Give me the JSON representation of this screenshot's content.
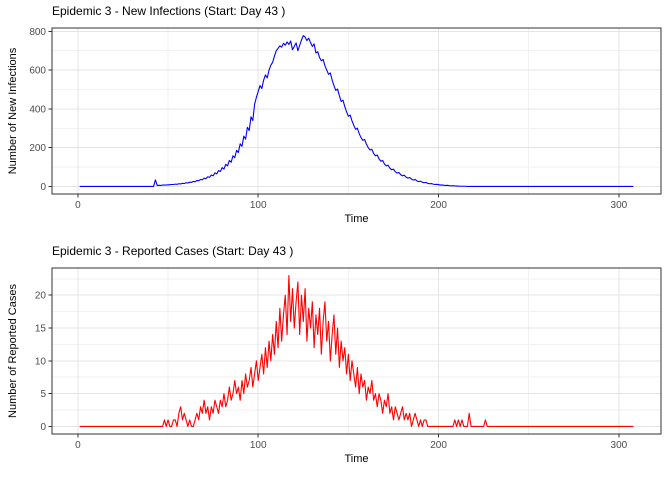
{
  "theme": {
    "background": "#FFFFFF",
    "grid_major_color": "#E4E4E4",
    "grid_minor_color": "#F2F2F2",
    "panel_border_color": "#333333",
    "tick_mark_color": "#333333",
    "tick_label_color": "#4D4D4D",
    "title_color": "#000000"
  },
  "chart_data": [
    {
      "type": "line",
      "title": "Epidemic 3 - New Infections (Start: Day 43 )",
      "xlabel": "Time",
      "ylabel": "Number of New Infections",
      "line_color": "#0000FF",
      "legend": "none",
      "grid": true,
      "x_ticks": [
        0,
        100,
        200,
        300
      ],
      "y_ticks": [
        0,
        200,
        400,
        600,
        800
      ],
      "x_minor_ticks": [
        50,
        150,
        250
      ],
      "y_minor_ticks": [
        100,
        300,
        500,
        700
      ],
      "ylim_hint": [
        0,
        800
      ],
      "x_start": 1,
      "x_step": 1,
      "values": [
        0,
        0,
        0,
        0,
        0,
        0,
        0,
        0,
        0,
        0,
        0,
        0,
        0,
        0,
        0,
        0,
        0,
        0,
        0,
        0,
        0,
        0,
        0,
        0,
        0,
        0,
        0,
        0,
        0,
        0,
        0,
        0,
        0,
        0,
        0,
        0,
        0,
        0,
        0,
        0,
        0,
        0,
        34,
        5,
        6,
        5,
        7,
        7,
        8,
        8,
        9,
        10,
        10,
        12,
        11,
        14,
        13,
        16,
        15,
        19,
        18,
        22,
        21,
        26,
        24,
        31,
        29,
        36,
        34,
        43,
        40,
        50,
        47,
        59,
        55,
        70,
        65,
        82,
        77,
        97,
        90,
        114,
        106,
        134,
        125,
        158,
        148,
        186,
        175,
        220,
        207,
        259,
        244,
        305,
        288,
        359,
        340,
        424,
        460,
        490,
        520,
        505,
        548,
        575,
        560,
        600,
        625,
        640,
        672,
        700,
        712,
        725,
        718,
        738,
        728,
        745,
        732,
        750,
        705,
        722,
        740,
        700,
        728,
        755,
        778,
        770,
        752,
        765,
        742,
        722,
        735,
        688,
        695,
        665,
        648,
        655,
        622,
        600,
        578,
        585,
        548,
        520,
        495,
        502,
        468,
        438,
        445,
        412,
        385,
        362,
        368,
        338,
        315,
        295,
        300,
        272,
        252,
        238,
        242,
        218,
        200,
        188,
        192,
        170,
        158,
        162,
        142,
        130,
        134,
        116,
        106,
        110,
        94,
        86,
        89,
        76,
        69,
        72,
        61,
        55,
        58,
        48,
        43,
        46,
        38,
        33,
        36,
        29,
        25,
        27,
        22,
        19,
        21,
        16,
        14,
        15,
        12,
        10,
        11,
        9,
        7,
        8,
        6,
        5,
        6,
        4,
        3,
        4,
        3,
        2,
        2,
        1,
        1,
        1,
        1,
        0,
        0,
        0,
        0,
        0,
        0,
        0,
        0,
        0,
        0,
        0,
        0,
        0,
        0,
        0,
        0,
        0,
        0,
        0,
        0,
        0,
        0,
        0,
        0,
        0,
        0,
        0,
        0,
        0,
        0,
        0,
        0,
        0,
        0,
        0,
        0,
        0,
        0,
        0,
        0,
        0,
        0,
        0,
        0,
        0,
        0,
        0,
        0,
        0,
        0,
        0,
        0,
        0,
        0,
        0,
        0,
        0,
        0,
        0,
        0,
        0,
        0,
        0,
        0,
        0,
        0,
        0,
        0,
        0,
        0,
        0,
        0,
        0,
        0,
        0,
        0,
        0,
        0,
        0,
        0,
        0,
        0,
        0,
        0,
        0,
        0,
        0,
        0,
        0,
        0,
        0,
        0,
        0
      ]
    },
    {
      "type": "line",
      "title": "Epidemic 3 - Reported Cases (Start: Day 43 )",
      "xlabel": "Time",
      "ylabel": "Number of Reported Cases",
      "line_color": "#FF0000",
      "legend": "none",
      "grid": true,
      "x_ticks": [
        0,
        100,
        200,
        300
      ],
      "y_ticks": [
        0,
        5,
        10,
        15,
        20
      ],
      "x_minor_ticks": [
        50,
        150,
        250
      ],
      "y_minor_ticks": [
        2.5,
        7.5,
        12.5,
        17.5,
        22.5
      ],
      "ylim_hint": [
        0,
        23
      ],
      "x_start": 1,
      "x_step": 1,
      "values": [
        0,
        0,
        0,
        0,
        0,
        0,
        0,
        0,
        0,
        0,
        0,
        0,
        0,
        0,
        0,
        0,
        0,
        0,
        0,
        0,
        0,
        0,
        0,
        0,
        0,
        0,
        0,
        0,
        0,
        0,
        0,
        0,
        0,
        0,
        0,
        0,
        0,
        0,
        0,
        0,
        0,
        0,
        0,
        0,
        0,
        0,
        0,
        1,
        0,
        1,
        0,
        0,
        1,
        1,
        0,
        2,
        3,
        1,
        2,
        1,
        0,
        1,
        0,
        0,
        1,
        2,
        1,
        3,
        2,
        4,
        2,
        3,
        1,
        3,
        2,
        4,
        3,
        2,
        4,
        3,
        5,
        3,
        4,
        6,
        4,
        5,
        7,
        5,
        6,
        4,
        7,
        5,
        8,
        6,
        7,
        9,
        6,
        8,
        10,
        7,
        9,
        11,
        8,
        12,
        9,
        13,
        10,
        14,
        11,
        16,
        12,
        18,
        13,
        17,
        20,
        14,
        23,
        16,
        21,
        15,
        19,
        22,
        14,
        20,
        16,
        21,
        13,
        18,
        15,
        19,
        12,
        17,
        14,
        18,
        11,
        16,
        19,
        13,
        16,
        10,
        14,
        17,
        11,
        15,
        9,
        13,
        10,
        12,
        8,
        11,
        7,
        10,
        8,
        6,
        9,
        5,
        8,
        6,
        7,
        4,
        6,
        5,
        7,
        4,
        5,
        3,
        5,
        4,
        2,
        4,
        3,
        5,
        2,
        3,
        1,
        3,
        2,
        1,
        2,
        3,
        1,
        2,
        1,
        2,
        0,
        1,
        2,
        1,
        0,
        1,
        0,
        1,
        1,
        0,
        0,
        0,
        0,
        0,
        0,
        0,
        0,
        0,
        0,
        0,
        0,
        0,
        0,
        0,
        1,
        0,
        1,
        0,
        1,
        0,
        0,
        0,
        2,
        0,
        0,
        0,
        0,
        0,
        0,
        0,
        0,
        1,
        0,
        0,
        0,
        0,
        0,
        0,
        0,
        0,
        0,
        0,
        0,
        0,
        0,
        0,
        0,
        0,
        0,
        0,
        0,
        0,
        0,
        0,
        0,
        0,
        0,
        0,
        0,
        0,
        0,
        0,
        0,
        0,
        0,
        0,
        0,
        0,
        0,
        0,
        0,
        0,
        0,
        0,
        0,
        0,
        0,
        0,
        0,
        0,
        0,
        0,
        0,
        0,
        0,
        0,
        0,
        0,
        0,
        0,
        0,
        0,
        0,
        0,
        0,
        0,
        0,
        0,
        0,
        0,
        0,
        0,
        0,
        0,
        0,
        0,
        0,
        0,
        0,
        0,
        0,
        0,
        0,
        0
      ]
    }
  ]
}
